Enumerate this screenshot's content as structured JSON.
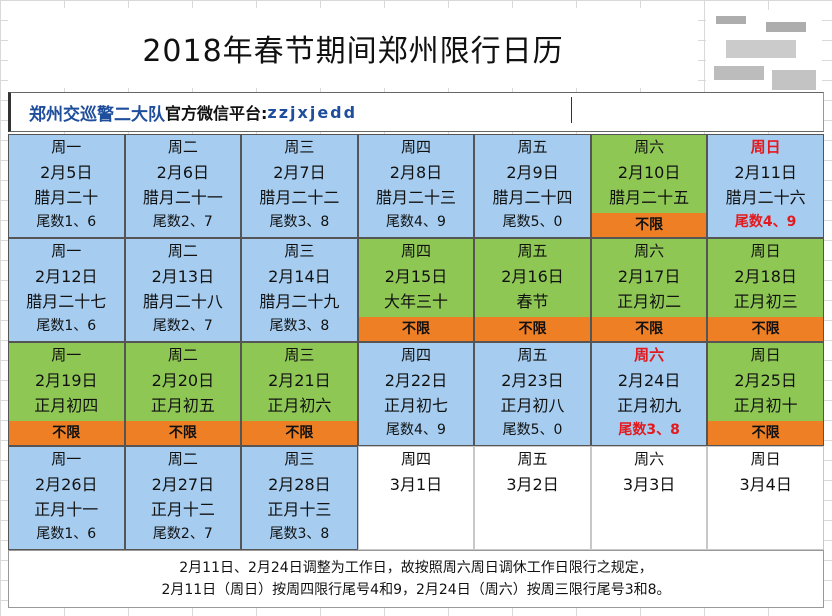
{
  "title": "2018年春节期间郑州限行日历",
  "subtitle": {
    "org": "郑州交巡警二大队",
    "label": "官方微信平台:",
    "wechat": "zzjxjedd"
  },
  "colors": {
    "restricted_day": "#a6cdf0",
    "holiday": "#8fc755",
    "no_limit_bar": "#ee7f25",
    "highlight_text": "#e3191d",
    "subtitle_accent": "#1f4e9c"
  },
  "calendar": {
    "weeks": [
      [
        {
          "weekday": "周一",
          "date": "2月5日",
          "lunar": "腊月二十",
          "rule": "尾数1、6",
          "style": "blue"
        },
        {
          "weekday": "周二",
          "date": "2月6日",
          "lunar": "腊月二十一",
          "rule": "尾数2、7",
          "style": "blue"
        },
        {
          "weekday": "周三",
          "date": "2月7日",
          "lunar": "腊月二十二",
          "rule": "尾数3、8",
          "style": "blue"
        },
        {
          "weekday": "周四",
          "date": "2月8日",
          "lunar": "腊月二十三",
          "rule": "尾数4、9",
          "style": "blue"
        },
        {
          "weekday": "周五",
          "date": "2月9日",
          "lunar": "腊月二十四",
          "rule": "尾数5、0",
          "style": "blue"
        },
        {
          "weekday": "周六",
          "date": "2月10日",
          "lunar": "腊月二十五",
          "rule": "不限",
          "style": "green"
        },
        {
          "weekday": "周日",
          "date": "2月11日",
          "lunar": "腊月二十六",
          "rule": "尾数4、9",
          "style": "blue",
          "weekday_red": true,
          "rule_red": true
        }
      ],
      [
        {
          "weekday": "周一",
          "date": "2月12日",
          "lunar": "腊月二十七",
          "rule": "尾数1、6",
          "style": "blue"
        },
        {
          "weekday": "周二",
          "date": "2月13日",
          "lunar": "腊月二十八",
          "rule": "尾数2、7",
          "style": "blue"
        },
        {
          "weekday": "周三",
          "date": "2月14日",
          "lunar": "腊月二十九",
          "rule": "尾数3、8",
          "style": "blue"
        },
        {
          "weekday": "周四",
          "date": "2月15日",
          "lunar": "大年三十",
          "rule": "不限",
          "style": "green"
        },
        {
          "weekday": "周五",
          "date": "2月16日",
          "lunar": "春节",
          "rule": "不限",
          "style": "green"
        },
        {
          "weekday": "周六",
          "date": "2月17日",
          "lunar": "正月初二",
          "rule": "不限",
          "style": "green"
        },
        {
          "weekday": "周日",
          "date": "2月18日",
          "lunar": "正月初三",
          "rule": "不限",
          "style": "green"
        }
      ],
      [
        {
          "weekday": "周一",
          "date": "2月19日",
          "lunar": "正月初四",
          "rule": "不限",
          "style": "green"
        },
        {
          "weekday": "周二",
          "date": "2月20日",
          "lunar": "正月初五",
          "rule": "不限",
          "style": "green"
        },
        {
          "weekday": "周三",
          "date": "2月21日",
          "lunar": "正月初六",
          "rule": "不限",
          "style": "green"
        },
        {
          "weekday": "周四",
          "date": "2月22日",
          "lunar": "正月初七",
          "rule": "尾数4、9",
          "style": "blue"
        },
        {
          "weekday": "周五",
          "date": "2月23日",
          "lunar": "正月初八",
          "rule": "尾数5、0",
          "style": "blue"
        },
        {
          "weekday": "周六",
          "date": "2月24日",
          "lunar": "正月初九",
          "rule": "尾数3、8",
          "style": "blue",
          "weekday_red": true,
          "rule_red": true
        },
        {
          "weekday": "周日",
          "date": "2月25日",
          "lunar": "正月初十",
          "rule": "不限",
          "style": "green"
        }
      ],
      [
        {
          "weekday": "周一",
          "date": "2月26日",
          "lunar": "正月十一",
          "rule": "尾数1、6",
          "style": "blue"
        },
        {
          "weekday": "周二",
          "date": "2月27日",
          "lunar": "正月十二",
          "rule": "尾数2、7",
          "style": "blue"
        },
        {
          "weekday": "周三",
          "date": "2月28日",
          "lunar": "正月十三",
          "rule": "尾数3、8",
          "style": "blue"
        },
        {
          "weekday": "周四",
          "date": "3月1日",
          "lunar": "",
          "rule": "",
          "style": "white"
        },
        {
          "weekday": "周五",
          "date": "3月2日",
          "lunar": "",
          "rule": "",
          "style": "white"
        },
        {
          "weekday": "周六",
          "date": "3月3日",
          "lunar": "",
          "rule": "",
          "style": "white"
        },
        {
          "weekday": "周日",
          "date": "3月4日",
          "lunar": "",
          "rule": "",
          "style": "white"
        }
      ]
    ]
  },
  "footer": {
    "line1": "2月11日、2月24日调整为工作日，故按照周六周日调休工作日限行之规定，",
    "line2": "2月11日（周日）按周四限行尾号4和9，2月24日（周六）按周三限行尾号3和8。"
  }
}
